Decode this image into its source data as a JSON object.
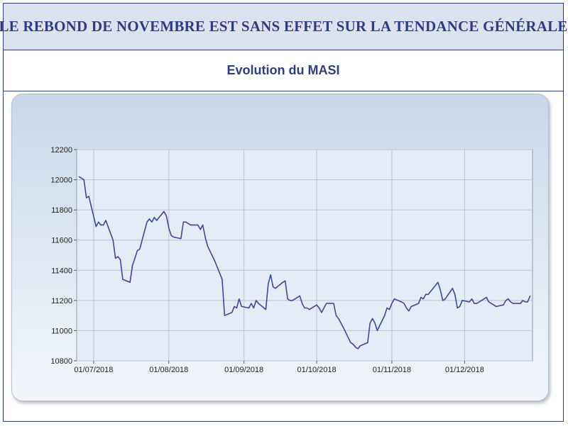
{
  "header": {
    "title": "LE REBOND DE NOVEMBRE EST SANS EFFET SUR LA TENDANCE GÉNÉRALE",
    "subtitle": "Evolution du MASI"
  },
  "colors": {
    "line": "#3b4a9c",
    "frame": "#2f3f86",
    "header_bg": "#dde2f1",
    "text": "#2e3c83"
  },
  "chart_data": {
    "type": "line",
    "title": "Evolution du MASI",
    "xlabel": "",
    "ylabel": "",
    "ylim": [
      10800,
      12200
    ],
    "yticks": [
      "12200",
      "12000",
      "11800",
      "11600",
      "11400",
      "11200",
      "11000",
      "10800"
    ],
    "xticks": [
      "01/07/2018",
      "01/08/2018",
      "01/09/2018",
      "01/10/2018",
      "01/11/2018",
      "01/12/2018"
    ],
    "grid": true,
    "series": [
      {
        "x": [
          "2018-06-25",
          "2018-06-27",
          "2018-06-28",
          "2018-06-29",
          "2018-07-02",
          "2018-07-03",
          "2018-07-04",
          "2018-07-05",
          "2018-07-06",
          "2018-07-09",
          "2018-07-10",
          "2018-07-11",
          "2018-07-12",
          "2018-07-13",
          "2018-07-16",
          "2018-07-17",
          "2018-07-18",
          "2018-07-19",
          "2018-07-20",
          "2018-07-23",
          "2018-07-24",
          "2018-07-25",
          "2018-07-26",
          "2018-07-27",
          "2018-07-30",
          "2018-07-31",
          "2018-08-01",
          "2018-08-02",
          "2018-08-03",
          "2018-08-06",
          "2018-08-07",
          "2018-08-08",
          "2018-08-09",
          "2018-08-10",
          "2018-08-13",
          "2018-08-14",
          "2018-08-15",
          "2018-08-16",
          "2018-08-17",
          "2018-08-20",
          "2018-08-23",
          "2018-08-24",
          "2018-08-27",
          "2018-08-28",
          "2018-08-29",
          "2018-08-30",
          "2018-08-31",
          "2018-09-03",
          "2018-09-04",
          "2018-09-05",
          "2018-09-06",
          "2018-09-07",
          "2018-09-10",
          "2018-09-11",
          "2018-09-12",
          "2018-09-13",
          "2018-09-14",
          "2018-09-17",
          "2018-09-18",
          "2018-09-19",
          "2018-09-20",
          "2018-09-21",
          "2018-09-24",
          "2018-09-25",
          "2018-09-26",
          "2018-09-27",
          "2018-09-28",
          "2018-10-01",
          "2018-10-02",
          "2018-10-03",
          "2018-10-04",
          "2018-10-05",
          "2018-10-08",
          "2018-10-09",
          "2018-10-10",
          "2018-10-11",
          "2018-10-12",
          "2018-10-15",
          "2018-10-16",
          "2018-10-17",
          "2018-10-18",
          "2018-10-19",
          "2018-10-22",
          "2018-10-23",
          "2018-10-24",
          "2018-10-25",
          "2018-10-26",
          "2018-10-29",
          "2018-10-30",
          "2018-10-31",
          "2018-11-01",
          "2018-11-02",
          "2018-11-05",
          "2018-11-06",
          "2018-11-07",
          "2018-11-08",
          "2018-11-09",
          "2018-11-12",
          "2018-11-13",
          "2018-11-14",
          "2018-11-15",
          "2018-11-16",
          "2018-11-19",
          "2018-11-20",
          "2018-11-21",
          "2018-11-22",
          "2018-11-23",
          "2018-11-26",
          "2018-11-27",
          "2018-11-28",
          "2018-11-29",
          "2018-11-30",
          "2018-12-03",
          "2018-12-04",
          "2018-12-05",
          "2018-12-06",
          "2018-12-07",
          "2018-12-10",
          "2018-12-11",
          "2018-12-12",
          "2018-12-13",
          "2018-12-14",
          "2018-12-17",
          "2018-12-18",
          "2018-12-19",
          "2018-12-20",
          "2018-12-21",
          "2018-12-24",
          "2018-12-25",
          "2018-12-26",
          "2018-12-27",
          "2018-12-28"
        ],
        "values": [
          12020,
          12000,
          11880,
          11890,
          11690,
          11720,
          11700,
          11700,
          11730,
          11600,
          11480,
          11490,
          11470,
          11340,
          11320,
          11430,
          11480,
          11530,
          11540,
          11720,
          11740,
          11720,
          11750,
          11730,
          11790,
          11760,
          11680,
          11630,
          11620,
          11610,
          11720,
          11720,
          11710,
          11700,
          11700,
          11670,
          11700,
          11620,
          11560,
          11460,
          11340,
          11100,
          11120,
          11160,
          11150,
          11210,
          11160,
          11150,
          11180,
          11150,
          11200,
          11180,
          11140,
          11310,
          11370,
          11290,
          11280,
          11320,
          11330,
          11210,
          11200,
          11200,
          11230,
          11180,
          11150,
          11150,
          11140,
          11170,
          11150,
          11120,
          11150,
          11180,
          11180,
          11100,
          11080,
          11050,
          11020,
          10920,
          10910,
          10890,
          10880,
          10900,
          10920,
          11050,
          11080,
          11050,
          11000,
          11100,
          11150,
          11140,
          11180,
          11210,
          11190,
          11180,
          11150,
          11130,
          11160,
          11180,
          11220,
          11210,
          11240,
          11240,
          11300,
          11320,
          11270,
          11200,
          11210,
          11280,
          11240,
          11150,
          11160,
          11200,
          11190,
          11210,
          11180,
          11180,
          11190,
          11220,
          11190,
          11180,
          11170,
          11160,
          11170,
          11200,
          11210,
          11190,
          11180,
          11180,
          11200,
          11190,
          11190,
          11230
        ]
      }
    ]
  }
}
